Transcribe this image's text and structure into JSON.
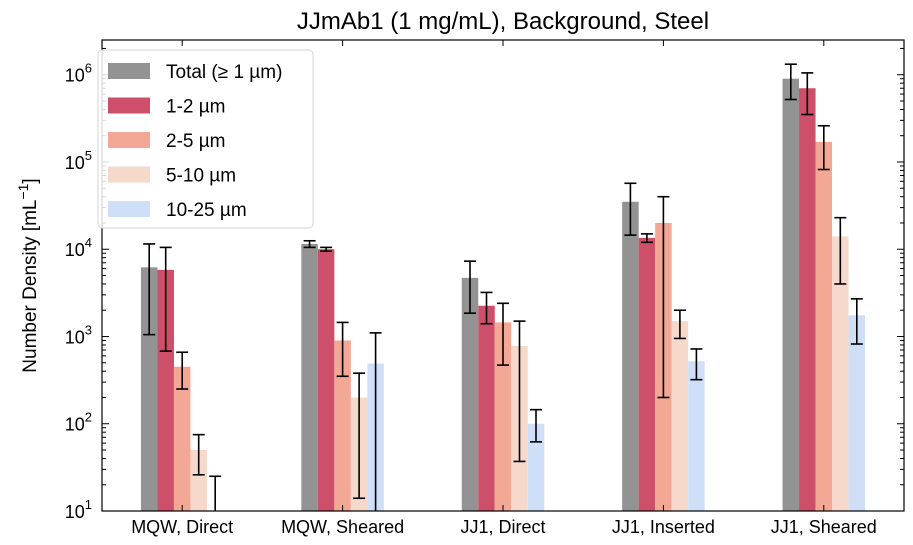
{
  "chart_data": {
    "type": "bar",
    "title": "JJmAb1 (1 mg/mL), Background, Steel",
    "xlabel": "",
    "ylabel_main": "Number Density [mL",
    "ylabel_sup": "−1",
    "ylabel_close": "]",
    "yscale": "log",
    "ylim": [
      10,
      2500000
    ],
    "y_ticks": [
      {
        "value": 10,
        "base": "10",
        "exp": "1"
      },
      {
        "value": 100,
        "base": "10",
        "exp": "2"
      },
      {
        "value": 1000,
        "base": "10",
        "exp": "3"
      },
      {
        "value": 10000,
        "base": "10",
        "exp": "4"
      },
      {
        "value": 100000,
        "base": "10",
        "exp": "5"
      },
      {
        "value": 1000000,
        "base": "10",
        "exp": "6"
      }
    ],
    "categories": [
      "MQW, Direct",
      "MQW, Sheared",
      "JJ1, Direct",
      "JJ1, Inserted",
      "JJ1, Sheared"
    ],
    "legend_position": "top-left",
    "grid": false,
    "series": [
      {
        "name": "Total (≥ 1 µm)",
        "color": "#939393",
        "values": [
          6200,
          11500,
          4700,
          35000,
          900000
        ],
        "err_low": [
          1050,
          10500,
          1850,
          14500,
          520000
        ],
        "err_high": [
          11500,
          12500,
          7300,
          57000,
          1320000
        ]
      },
      {
        "name": "1-2 µm",
        "color": "#cd4f69",
        "values": [
          5800,
          10000,
          2250,
          13500,
          700000
        ],
        "err_low": [
          680,
          9500,
          1400,
          12000,
          350000
        ],
        "err_high": [
          10500,
          10500,
          3200,
          15000,
          1050000
        ]
      },
      {
        "name": "2-5 µm",
        "color": "#f3a896",
        "values": [
          450,
          900,
          1450,
          20000,
          170000
        ],
        "err_low": [
          250,
          350,
          470,
          200,
          82000
        ],
        "err_high": [
          660,
          1450,
          2400,
          40000,
          260000
        ]
      },
      {
        "name": "5-10 µm",
        "color": "#f6d9ca",
        "values": [
          50,
          200,
          780,
          1500,
          14000
        ],
        "err_low": [
          26,
          14,
          37,
          950,
          4000
        ],
        "err_high": [
          75,
          380,
          1500,
          2000,
          23000
        ]
      },
      {
        "name": "10-25 µm",
        "color": "#cfdff8",
        "values": [
          null,
          490,
          100,
          520,
          1750
        ],
        "err_low": [
          null,
          null,
          62,
          320,
          820
        ],
        "err_high": [
          25,
          1100,
          145,
          720,
          2700
        ]
      }
    ]
  }
}
